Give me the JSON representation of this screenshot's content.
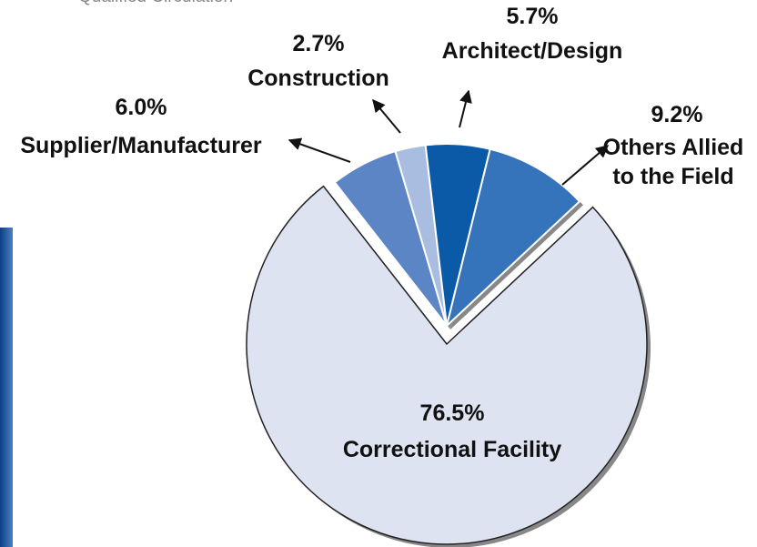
{
  "chart_data": {
    "type": "pie",
    "title": "Qualified Circulation",
    "categories": [
      "Correctional Facility",
      "Supplier/Manufacturer",
      "Construction",
      "Architect/Design",
      "Others Allied to the Field"
    ],
    "values": [
      76.5,
      6.0,
      2.7,
      5.7,
      9.2
    ],
    "value_labels": [
      "76.5%",
      "6.0%",
      "2.7%",
      "5.7%",
      "9.2%"
    ],
    "colors": [
      "#dde3f0",
      "#5b85c4",
      "#a9bde0",
      "#0a5aa8",
      "#3574bb"
    ]
  }
}
